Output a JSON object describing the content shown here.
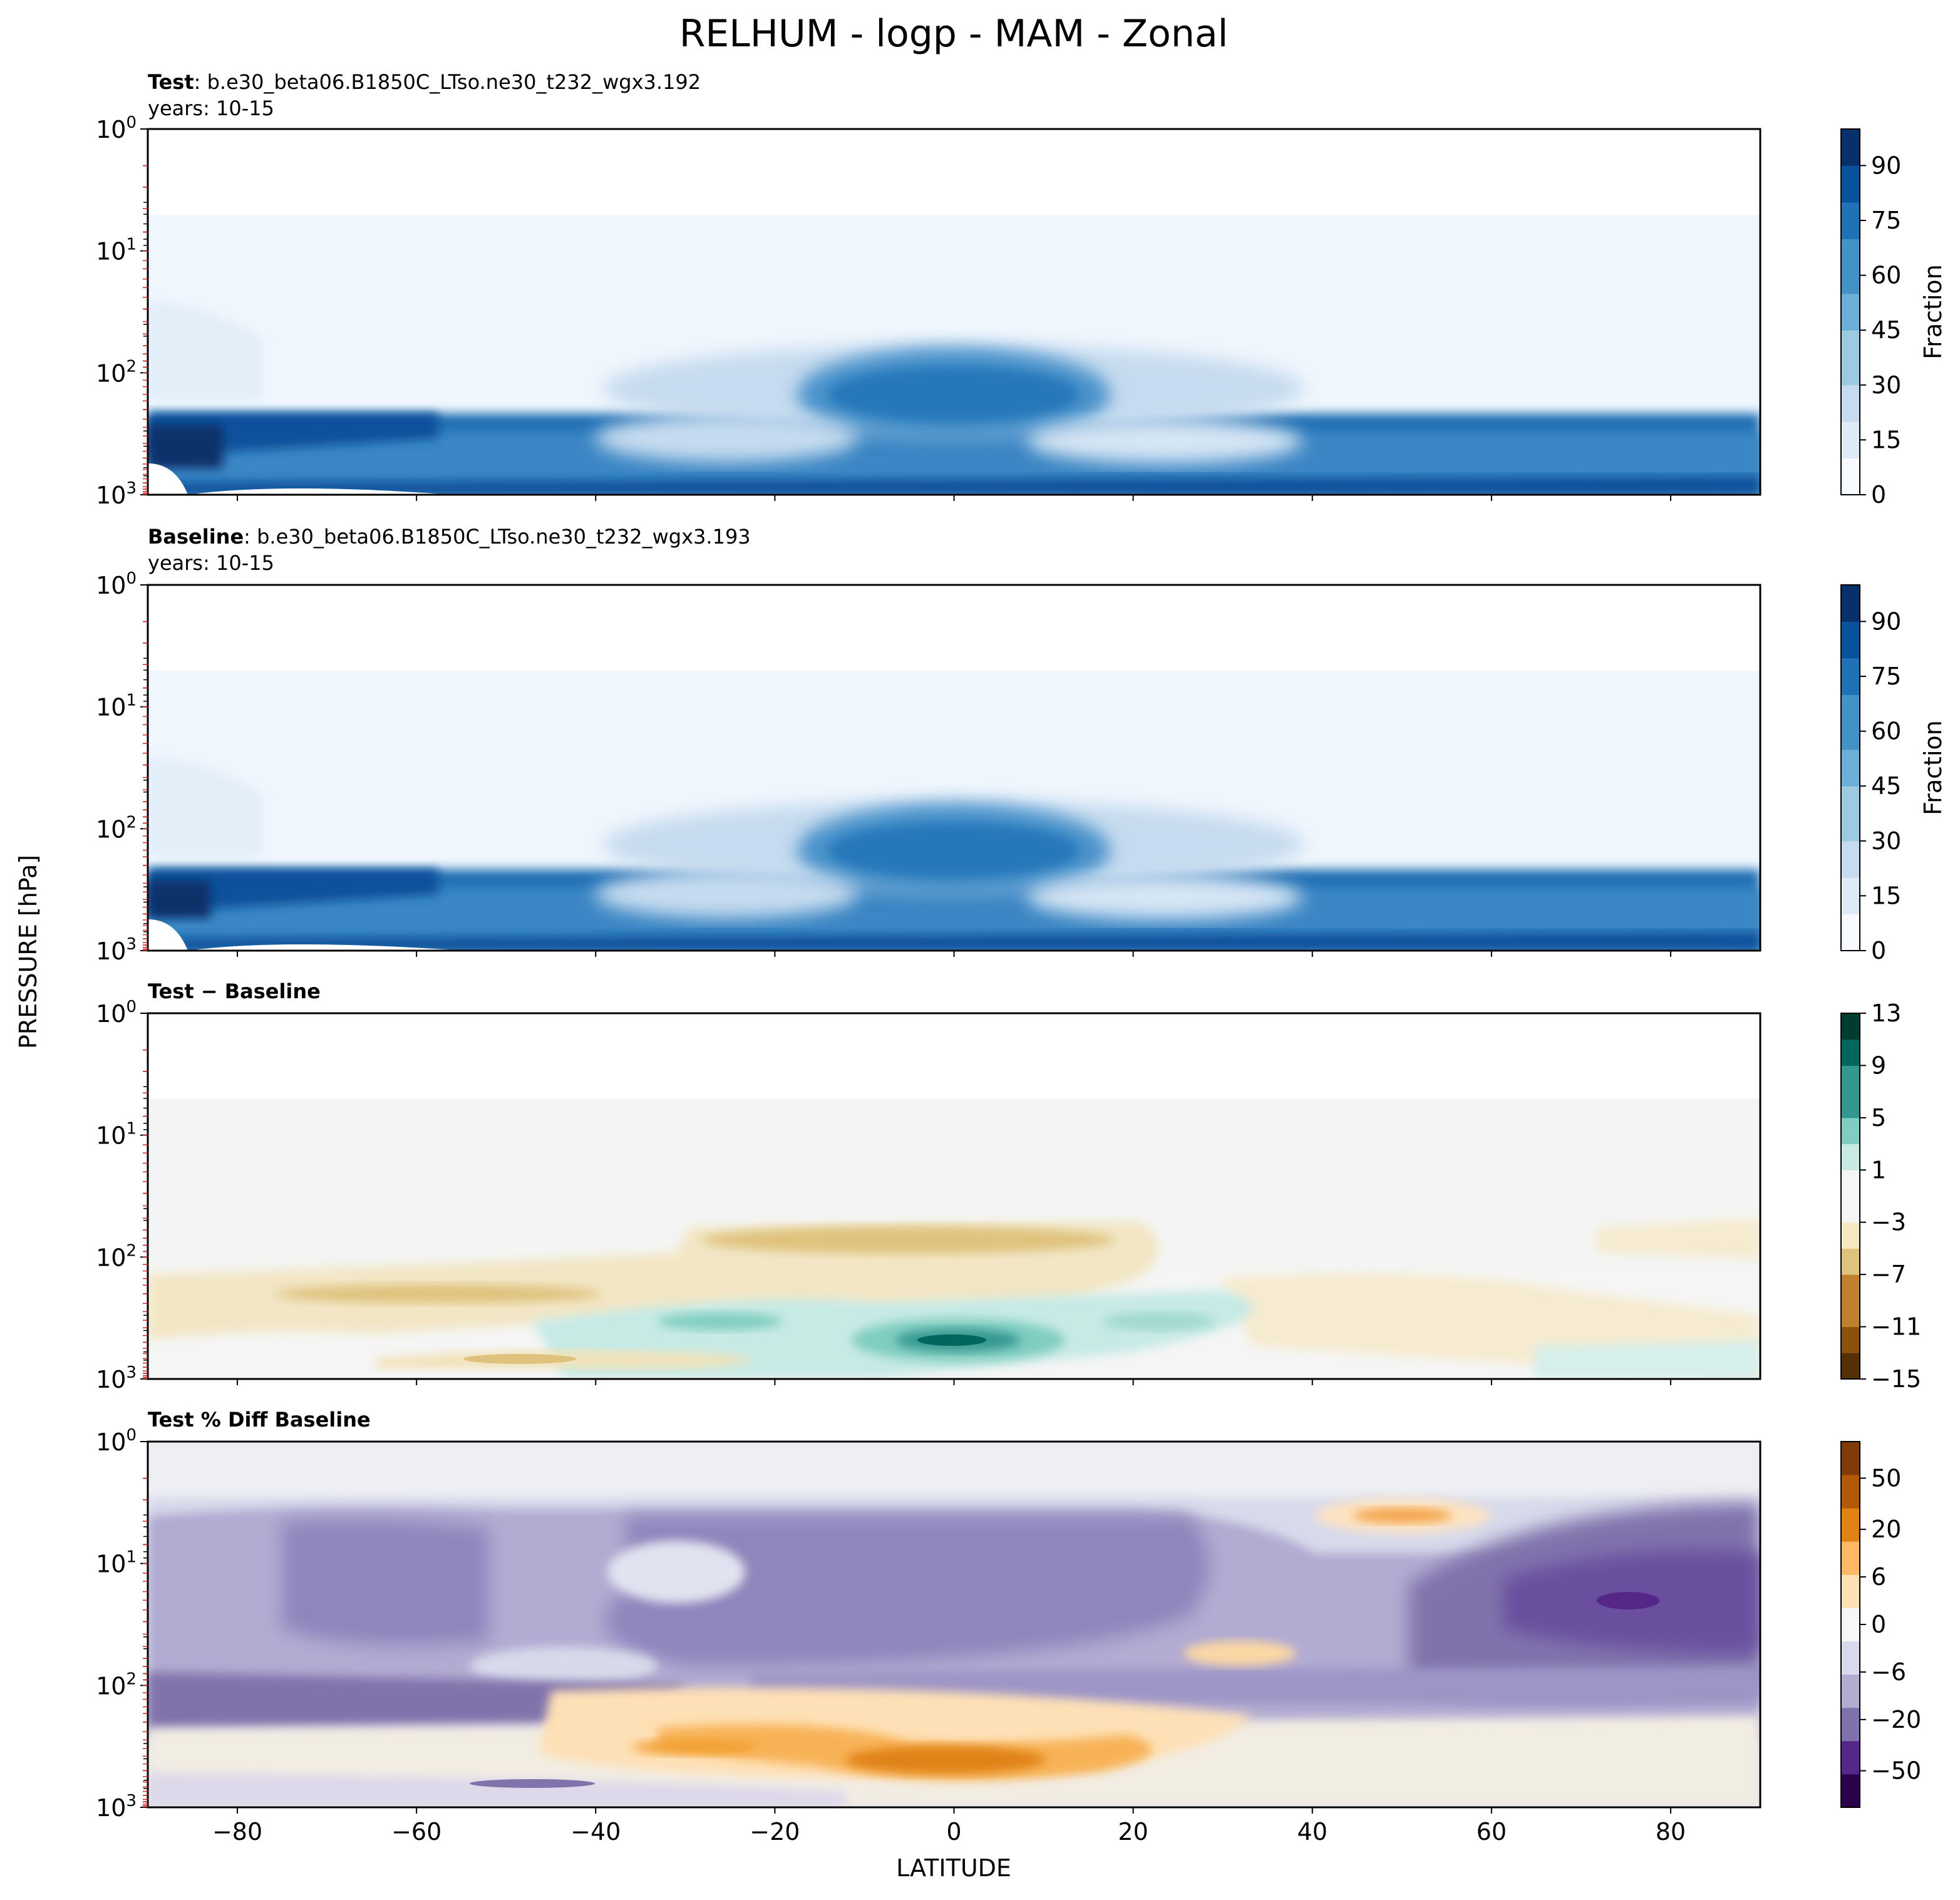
{
  "figure": {
    "title": "RELHUM - logp - MAM - Zonal",
    "ylabel": "PRESSURE [hPa]",
    "xlabel": "LATITUDE"
  },
  "panels": [
    {
      "title_bold": "Test",
      "title_text": ": b.e30_beta06.B1850C_LTso.ne30_t232_wgx3.192",
      "subtitle": "years: 10-15"
    },
    {
      "title_bold": "Baseline",
      "title_text": ": b.e30_beta06.B1850C_LTso.ne30_t232_wgx3.193",
      "subtitle": "years: 10-15"
    },
    {
      "title_bold": "Test − Baseline",
      "title_text": "",
      "subtitle": ""
    },
    {
      "title_bold": "Test % Diff Baseline",
      "title_text": "",
      "subtitle": ""
    }
  ],
  "colorbars": [
    {
      "label": "Fraction",
      "ticks": [
        "0",
        "15",
        "30",
        "45",
        "60",
        "75",
        "90"
      ]
    },
    {
      "label": "Fraction",
      "ticks": [
        "0",
        "15",
        "30",
        "45",
        "60",
        "75",
        "90"
      ]
    },
    {
      "label": "",
      "ticks": [
        "13",
        "9",
        "5",
        "1",
        "−3",
        "−7",
        "−11",
        "−15"
      ]
    },
    {
      "label": "",
      "ticks": [
        "50",
        "20",
        "6",
        "0",
        "−6",
        "−20",
        "−50"
      ]
    }
  ],
  "colors": {
    "blues": [
      "#f7fbff",
      "#deebf7",
      "#c6dbef",
      "#9ecae1",
      "#6baed6",
      "#4292c6",
      "#2171b5",
      "#08519c",
      "#08306b"
    ],
    "brbg": [
      "#543005",
      "#8c510a",
      "#bf812d",
      "#dfc27d",
      "#f6e8c3",
      "#f5f5f5",
      "#c7eae5",
      "#80cdc1",
      "#35978f",
      "#01665e",
      "#003c30"
    ],
    "puor": [
      "#2d004b",
      "#542788",
      "#8073ac",
      "#b2abd2",
      "#d8daeb",
      "#f7f7f7",
      "#fee0b6",
      "#fdb863",
      "#e08214",
      "#b35806",
      "#7f3b08"
    ]
  },
  "chart_data": [
    {
      "type": "contour",
      "title": "Test : b.e30_beta06.B1850C_LTso.ne30_t232_wgx3.192",
      "subtitle": "years: 10-15",
      "xlabel": "LATITUDE",
      "ylabel": "PRESSURE [hPa]",
      "xlim": [
        -90,
        90
      ],
      "ylim": [
        1000,
        1
      ],
      "yscale": "log",
      "x_ticks": [
        "−80",
        "−60",
        "−40",
        "−20",
        "0",
        "20",
        "40",
        "60",
        "80"
      ],
      "y_ticks": [
        "10^0",
        "10^1",
        "10^2",
        "10^3"
      ],
      "colorbar": {
        "label": "Fraction",
        "range": [
          0,
          100
        ],
        "ticks": [
          0,
          15,
          30,
          45,
          60,
          75,
          90
        ],
        "cmap": "Blues"
      },
      "features": [
        {
          "desc": "high humidity boundary layer",
          "lat": [
            -90,
            90
          ],
          "p_hPa": [
            200,
            1000
          ],
          "value": "70-100"
        },
        {
          "desc": "tropical upper-troposphere maximum",
          "lat": [
            -20,
            20
          ],
          "p_hPa": [
            90,
            150
          ],
          "value": "~75"
        },
        {
          "desc": "subtropical dry zones",
          "lat_centers": [
            -25,
            20
          ],
          "p_hPa": [
            350,
            600
          ],
          "value": "~15-30"
        },
        {
          "desc": "stratosphere",
          "lat": [
            -90,
            90
          ],
          "p_hPa": [
            1,
            50
          ],
          "value": "<5"
        }
      ]
    },
    {
      "type": "contour",
      "title": "Baseline : b.e30_beta06.B1850C_LTso.ne30_t232_wgx3.193",
      "subtitle": "years: 10-15",
      "xlabel": "LATITUDE",
      "ylabel": "PRESSURE [hPa]",
      "xlim": [
        -90,
        90
      ],
      "ylim": [
        1000,
        1
      ],
      "yscale": "log",
      "colorbar": {
        "label": "Fraction",
        "range": [
          0,
          100
        ],
        "ticks": [
          0,
          15,
          30,
          45,
          60,
          75,
          90
        ],
        "cmap": "Blues"
      },
      "features": [
        {
          "desc": "high humidity boundary layer",
          "lat": [
            -90,
            90
          ],
          "p_hPa": [
            200,
            1000
          ],
          "value": "70-100"
        },
        {
          "desc": "tropical upper-troposphere maximum",
          "lat": [
            -20,
            20
          ],
          "p_hPa": [
            90,
            150
          ],
          "value": "~75"
        }
      ]
    },
    {
      "type": "contour",
      "title": "Test − Baseline",
      "xlabel": "LATITUDE",
      "ylabel": "PRESSURE [hPa]",
      "xlim": [
        -90,
        90
      ],
      "ylim": [
        1000,
        1
      ],
      "yscale": "log",
      "colorbar": {
        "range": [
          -15,
          13
        ],
        "ticks": [
          13,
          9,
          5,
          1,
          -3,
          -7,
          -11,
          -15
        ],
        "cmap": "BrBG"
      },
      "features": [
        {
          "desc": "positive maximum near equator lower troposphere",
          "lat": [
            -10,
            10
          ],
          "p_hPa": 500,
          "value": 11
        },
        {
          "desc": "negative band tropical tropopause",
          "lat": [
            -20,
            15
          ],
          "p_hPa": 70,
          "value": -5
        },
        {
          "desc": "negative band southern mid-latitudes",
          "lat": [
            -75,
            -30
          ],
          "p_hPa": 200,
          "value": -5
        }
      ]
    },
    {
      "type": "contour",
      "title": "Test % Diff Baseline",
      "xlabel": "LATITUDE",
      "ylabel": "PRESSURE [hPa]",
      "xlim": [
        -90,
        90
      ],
      "ylim": [
        1000,
        1
      ],
      "yscale": "log",
      "colorbar": {
        "range": [
          -70,
          70
        ],
        "ticks": [
          50,
          20,
          6,
          0,
          -6,
          -20,
          -50
        ],
        "cmap": "PuOr_r"
      },
      "features": [
        {
          "desc": "negative stratospheric percent difference",
          "lat": [
            -80,
            35
          ],
          "p_hPa": [
            4,
            80
          ],
          "value": "-20 to -30"
        },
        {
          "desc": "strong negative northern high latitudes",
          "lat": [
            60,
            90
          ],
          "p_hPa": [
            8,
            60
          ],
          "value": "-40 to -60"
        },
        {
          "desc": "positive patch northern mid-latitude stratosphere",
          "lat": [
            45,
            65
          ],
          "p_hPa": 5,
          "value": 20
        },
        {
          "desc": "positive tropical lower troposphere",
          "lat": [
            -20,
            25
          ],
          "p_hPa": [
            300,
            700
          ],
          "value": "10 to 20"
        }
      ]
    }
  ]
}
